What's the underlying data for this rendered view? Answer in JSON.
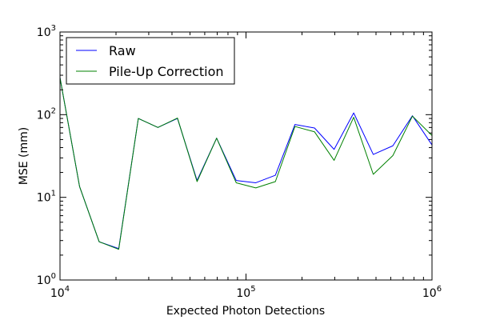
{
  "chart_data": {
    "type": "line",
    "title": "",
    "xlabel": "Expected Photon Detections",
    "ylabel": "MSE (mm)",
    "xscale": "log",
    "yscale": "log",
    "xlim": [
      10000,
      1000000
    ],
    "ylim": [
      1,
      1000
    ],
    "grid": false,
    "legend_position": "top-left",
    "x_ticks": [
      {
        "base": "10",
        "exp": "4",
        "value": 10000
      },
      {
        "base": "10",
        "exp": "5",
        "value": 100000
      },
      {
        "base": "10",
        "exp": "6",
        "value": 1000000
      }
    ],
    "y_ticks": [
      {
        "base": "10",
        "exp": "0",
        "value": 1
      },
      {
        "base": "10",
        "exp": "1",
        "value": 10
      },
      {
        "base": "10",
        "exp": "2",
        "value": 100
      },
      {
        "base": "10",
        "exp": "3",
        "value": 1000
      }
    ],
    "x": [
      10000,
      12742,
      16238,
      20691,
      26367,
      33598,
      42813,
      54556,
      69519,
      88587,
      112884,
      143845,
      183298,
      233572,
      297635,
      379269,
      483293,
      615848,
      784760,
      1000000
    ],
    "series": [
      {
        "name": "Raw",
        "color": "#0000ff",
        "values": [
          280,
          13.5,
          2.9,
          2.4,
          90,
          70,
          90,
          16,
          52,
          16,
          15,
          18.5,
          76,
          69,
          38,
          105,
          33,
          42,
          97,
          43
        ]
      },
      {
        "name": "Pile-Up Correction",
        "color": "#008000",
        "values": [
          280,
          13.5,
          2.9,
          2.35,
          90,
          70,
          91,
          15.5,
          52,
          15,
          13,
          15.5,
          72,
          62,
          28,
          93,
          19,
          32,
          96,
          56
        ]
      }
    ]
  }
}
